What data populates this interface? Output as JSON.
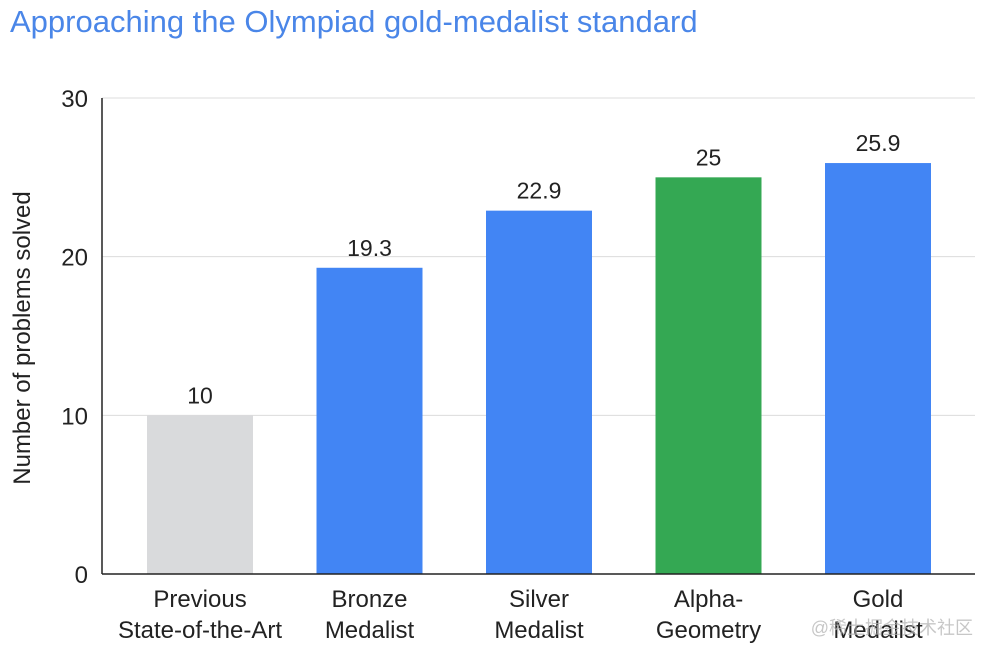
{
  "chart_data": {
    "type": "bar",
    "title": "Approaching the Olympiad gold-medalist standard",
    "xlabel": "",
    "ylabel": "Number of problems solved",
    "ylim": [
      0,
      30
    ],
    "yticks": [
      "0",
      "10",
      "20",
      "30"
    ],
    "grid": true,
    "categories": [
      [
        "Previous",
        "State-of-the-Art"
      ],
      [
        "Bronze",
        "Medalist"
      ],
      [
        "Silver",
        "Medalist"
      ],
      [
        "Alpha-",
        "Geometry"
      ],
      [
        "Gold",
        "Medalist"
      ]
    ],
    "values": [
      10,
      19.3,
      22.9,
      25,
      25.9
    ],
    "value_labels": [
      "10",
      "19.3",
      "22.9",
      "25",
      "25.9"
    ],
    "colors": [
      "#d9dadc",
      "#4285f4",
      "#4285f4",
      "#34a853",
      "#4285f4"
    ]
  },
  "watermark": "@稀土掘金技术社区"
}
